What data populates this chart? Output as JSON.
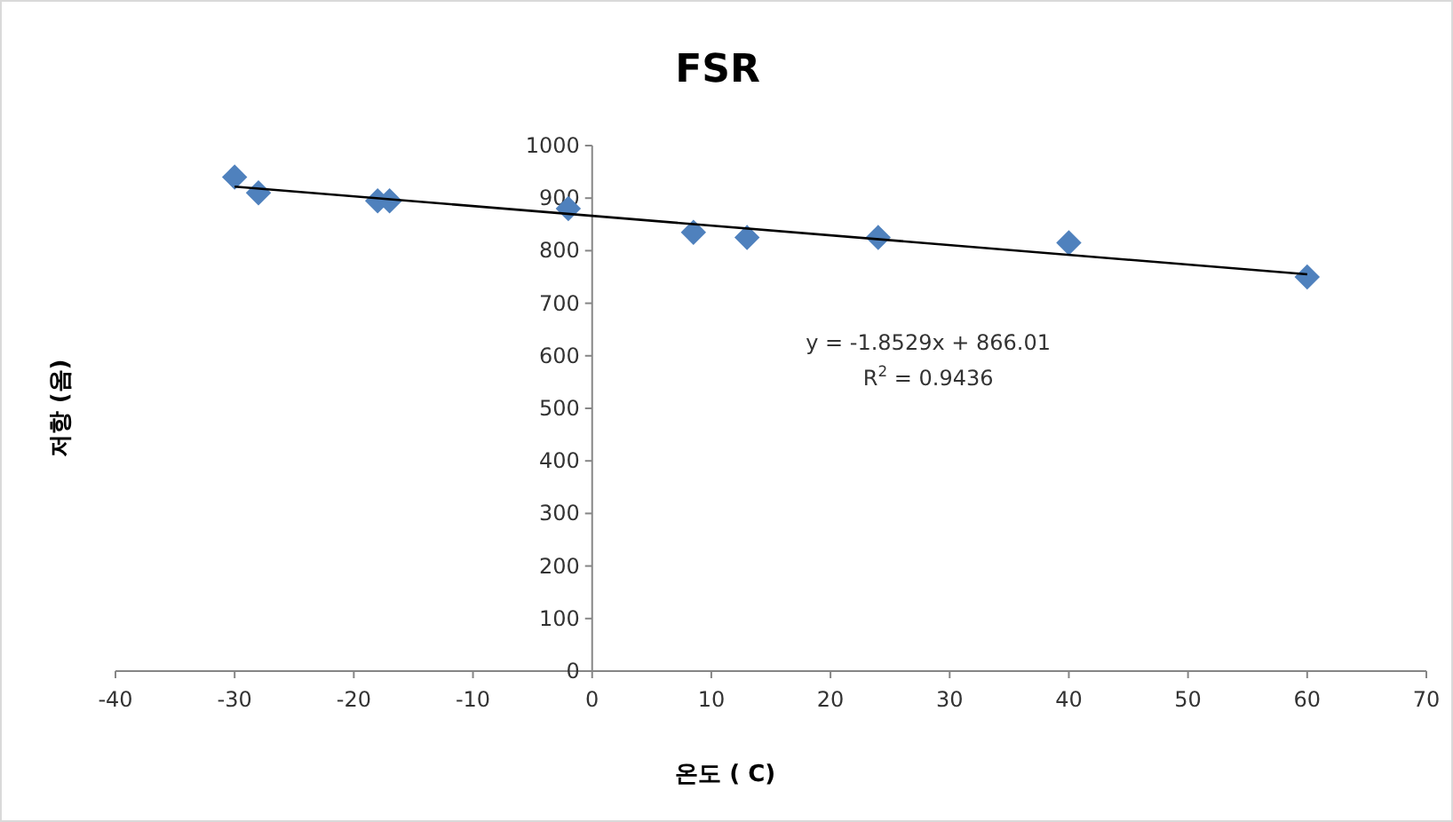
{
  "chart_data": {
    "type": "scatter",
    "title": "FSR",
    "xlabel": "온도 ( C)",
    "ylabel": "저항 (옴)",
    "xlim": [
      -40,
      70
    ],
    "xticks": [
      -40,
      -30,
      -20,
      -10,
      0,
      10,
      20,
      30,
      40,
      50,
      60,
      70
    ],
    "ylim": [
      0,
      1000
    ],
    "yticks": [
      0,
      100,
      200,
      300,
      400,
      500,
      600,
      700,
      800,
      900,
      1000
    ],
    "grid": false,
    "series": [
      {
        "color": "#4f81bd",
        "marker": "diamond",
        "x": [
          -30,
          -28,
          -18,
          -17,
          -2,
          8.5,
          13,
          24,
          40,
          60
        ],
        "values": [
          940,
          910,
          895,
          895,
          880,
          835,
          825,
          825,
          815,
          750
        ]
      },
      {
        "type": "line",
        "color": "#000000",
        "x": [
          -30,
          60
        ],
        "values": [
          922,
          755
        ]
      }
    ],
    "annotations": [
      "y = -1.8529x + 866.01",
      "R$^{2}$ = 0.9436"
    ]
  }
}
